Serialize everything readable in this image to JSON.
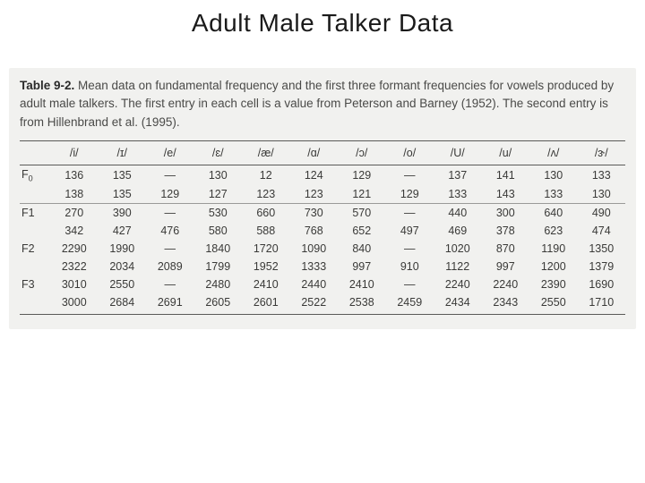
{
  "title": "Adult Male Talker Data",
  "caption_label": "Table 9-2.",
  "caption_text": " Mean data on fundamental frequency and the first three formant frequencies for vowels produced by adult male talkers. The first entry in each cell is a value from Peterson and Barney (1952). The second entry is from Hillenbrand et al. (1995).",
  "table": {
    "type": "table",
    "columns": [
      "/i/",
      "/ɪ/",
      "/e/",
      "/ɛ/",
      "/æ/",
      "/ɑ/",
      "/ɔ/",
      "/o/",
      "/U/",
      "/u/",
      "/ʌ/",
      "/ɝ/"
    ],
    "row_labels": [
      "F0",
      "F1",
      "F2",
      "F3"
    ],
    "rows": [
      [
        [
          "136",
          "138"
        ],
        [
          "135",
          "135"
        ],
        [
          "—",
          "129"
        ],
        [
          "130",
          "127"
        ],
        [
          "12",
          "123"
        ],
        [
          "124",
          "123"
        ],
        [
          "129",
          "121"
        ],
        [
          "—",
          "129"
        ],
        [
          "137",
          "133"
        ],
        [
          "141",
          "143"
        ],
        [
          "130",
          "133"
        ],
        [
          "133",
          "130"
        ]
      ],
      [
        [
          "270",
          "342"
        ],
        [
          "390",
          "427"
        ],
        [
          "—",
          "476"
        ],
        [
          "530",
          "580"
        ],
        [
          "660",
          "588"
        ],
        [
          "730",
          "768"
        ],
        [
          "570",
          "652"
        ],
        [
          "—",
          "497"
        ],
        [
          "440",
          "469"
        ],
        [
          "300",
          "378"
        ],
        [
          "640",
          "623"
        ],
        [
          "490",
          "474"
        ]
      ],
      [
        [
          "2290",
          "2322"
        ],
        [
          "1990",
          "2034"
        ],
        [
          "—",
          "2089"
        ],
        [
          "1840",
          "1799"
        ],
        [
          "1720",
          "1952"
        ],
        [
          "1090",
          "1333"
        ],
        [
          "840",
          "997"
        ],
        [
          "—",
          "910"
        ],
        [
          "1020",
          "1122"
        ],
        [
          "870",
          "997"
        ],
        [
          "1190",
          "1200"
        ],
        [
          "1350",
          "1379"
        ]
      ],
      [
        [
          "3010",
          "3000"
        ],
        [
          "2550",
          "2684"
        ],
        [
          "—",
          "2691"
        ],
        [
          "2480",
          "2605"
        ],
        [
          "2410",
          "2601"
        ],
        [
          "2440",
          "2522"
        ],
        [
          "2410",
          "2538"
        ],
        [
          "—",
          "2459"
        ],
        [
          "2240",
          "2434"
        ],
        [
          "2240",
          "2343"
        ],
        [
          "2390",
          "2550"
        ],
        [
          "1690",
          "1710"
        ]
      ]
    ],
    "background_color": "#f1f1ef",
    "text_color": "#3a3a38",
    "rule_color": "#5a5a58",
    "font_size_pt": 12.5,
    "caption_font_size_pt": 13.5
  }
}
